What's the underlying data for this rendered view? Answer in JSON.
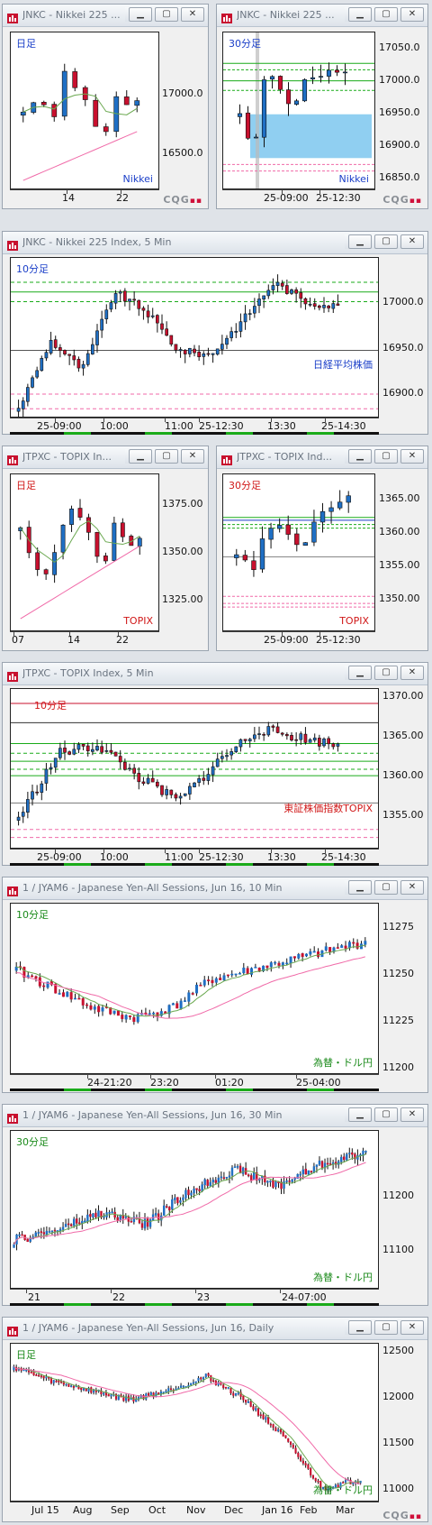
{
  "colors": {
    "up": "#1f6fc4",
    "down": "#c8102e",
    "ma_green": "#6aa84f",
    "ma_pink": "#f06aa8",
    "green_line": "#1aab1a",
    "box": "#7cc7ef",
    "tf_blue": "#1a3ec8",
    "tf_red": "#d01818",
    "tf_green": "#1a8a1a"
  },
  "windows": [
    {
      "id": "w1",
      "title": "JNKC - Nikkei 225 ...",
      "timeframe": "日足",
      "watermark": "Nikkei",
      "y_labels": [
        "17000.0",
        "16500.0"
      ],
      "x_labels": [
        "14",
        "22"
      ],
      "logo": "CQG",
      "ylim": [
        16100,
        17700
      ],
      "tf_color": "tf_blue",
      "wm_color": "tf_blue",
      "kind": "daily"
    },
    {
      "id": "w2",
      "title": "JNKC - Nikkei 225 ...",
      "timeframe": "30分足",
      "watermark": "Nikkei",
      "y_labels": [
        "17050.0",
        "17000.0",
        "16950.0",
        "16900.0",
        "16850.0"
      ],
      "x_labels": [
        "25-09:00",
        "25-12:30"
      ],
      "logo": "CQG",
      "ylim": [
        16830,
        17075
      ],
      "tf_color": "tf_blue",
      "wm_color": "tf_blue",
      "kind": "intraday30"
    },
    {
      "id": "w3",
      "title": "JNKC - Nikkei 225 Index, 5 Min",
      "timeframe": "10分足",
      "watermark": "日経平均株価",
      "y_labels": [
        "17000.0",
        "16950.0",
        "16900.0"
      ],
      "x_labels": [
        "25-09:00",
        "10:00",
        "11:00",
        "25-12:30",
        "13:30",
        "25-14:30"
      ],
      "logo": "",
      "ylim": [
        16880,
        17045
      ],
      "tf_color": "tf_blue",
      "wm_color": "tf_blue",
      "kind": "intraday5"
    },
    {
      "id": "w4",
      "title": "JTPXC - TOPIX In...",
      "timeframe": "日足",
      "watermark": "TOPIX",
      "y_labels": [
        "1375.00",
        "1350.00",
        "1325.00"
      ],
      "x_labels": [
        "07",
        "14",
        "22"
      ],
      "logo": "",
      "ylim": [
        1308,
        1390
      ],
      "tf_color": "tf_red",
      "wm_color": "tf_red",
      "kind": "daily"
    },
    {
      "id": "w5",
      "title": "JTPXC - TOPIX Ind...",
      "timeframe": "30分足",
      "watermark": "TOPIX",
      "y_labels": [
        "1365.00",
        "1360.00",
        "1355.00",
        "1350.00"
      ],
      "x_labels": [
        "25-09:00",
        "25-12:30"
      ],
      "logo": "",
      "ylim": [
        1347,
        1369
      ],
      "tf_color": "tf_red",
      "wm_color": "tf_red",
      "kind": "intraday30"
    },
    {
      "id": "w6",
      "title": "JTPXC - TOPIX Index, 5 Min",
      "timeframe": "10分足",
      "watermark": "東証株価指数TOPIX",
      "y_labels": [
        "1370.00",
        "1365.00",
        "1360.00",
        "1355.00"
      ],
      "x_labels": [
        "25-09:00",
        "10:00",
        "11:00",
        "25-12:30",
        "13:30",
        "25-14:30"
      ],
      "logo": "",
      "ylim": [
        1352,
        1372
      ],
      "tf_color": "tf_red",
      "wm_color": "tf_red",
      "kind": "intraday5"
    },
    {
      "id": "w7",
      "title": "1 / JYAM6 - Japanese Yen-All Sessions, Jun 16, 10 Min",
      "timeframe": "10分足",
      "watermark": "為替・ドル円",
      "y_labels": [
        "11275",
        "11250",
        "11225",
        "11200"
      ],
      "x_labels": [
        "24-21:20",
        "23:20",
        "01:20",
        "25-04:00"
      ],
      "logo": "",
      "ylim": [
        11195,
        11285
      ],
      "tf_color": "tf_green",
      "wm_color": "tf_green",
      "kind": "yen10"
    },
    {
      "id": "w8",
      "title": "1 / JYAM6 - Japanese Yen-All Sessions, Jun 16, 30 Min",
      "timeframe": "30分足",
      "watermark": "為替・ドル円",
      "y_labels": [
        "11200",
        "11100"
      ],
      "x_labels": [
        "21",
        "22",
        "23",
        "24-07:00"
      ],
      "logo": "",
      "ylim": [
        11030,
        11320
      ],
      "tf_color": "tf_green",
      "wm_color": "tf_green",
      "kind": "yen30"
    },
    {
      "id": "w9",
      "title": "1 / JYAM6 - Japanese Yen-All Sessions, Jun 16, Daily",
      "timeframe": "日足",
      "watermark": "為替・ドル円",
      "y_labels": [
        "12500",
        "12000",
        "11500",
        "11000"
      ],
      "x_labels": [
        "Jul 15",
        "Aug",
        "Sep",
        "Oct",
        "Nov",
        "Dec",
        "Jan 16",
        "Feb",
        "Mar"
      ],
      "logo": "CQG",
      "ylim": [
        10850,
        12550
      ],
      "tf_color": "tf_green",
      "wm_color": "tf_green",
      "kind": "yendaily"
    }
  ],
  "chart_data": [
    {
      "type": "candlestick",
      "title": "JNKC 日足",
      "x_ticks": [
        "14",
        "22"
      ],
      "ylim": [
        16100,
        17700
      ],
      "close_approx": [
        16900,
        17000,
        16950,
        16850,
        17300,
        17150,
        17000,
        16750,
        16700,
        17050,
        16950,
        17000
      ]
    },
    {
      "type": "candlestick",
      "title": "JNKC 30分足",
      "x_ticks": [
        "25-09:00",
        "25-12:30"
      ],
      "ylim": [
        16830,
        17075
      ],
      "close_approx": [
        16950,
        16880,
        17020,
        16990,
        16960,
        17000,
        17010,
        17015,
        17010
      ]
    },
    {
      "type": "candlestick",
      "title": "JNKC 10分足",
      "x_ticks": [
        "25-09:00",
        "10:00",
        "11:00",
        "25-12:30",
        "13:30",
        "25-14:30"
      ],
      "ylim": [
        16880,
        17045
      ],
      "close_approx": [
        16890,
        16960,
        16930,
        17010,
        16990,
        16950,
        16945,
        16980,
        17020,
        17000,
        16995
      ]
    },
    {
      "type": "candlestick",
      "title": "JTPXC 日足",
      "x_ticks": [
        "07",
        "14",
        "22"
      ],
      "ylim": [
        1308,
        1390
      ],
      "close_approx": [
        1365,
        1345,
        1338,
        1350,
        1375,
        1365,
        1355,
        1342,
        1365,
        1350,
        1358
      ]
    },
    {
      "type": "candlestick",
      "title": "JTPXC 30分足",
      "x_ticks": [
        "25-09:00",
        "25-12:30"
      ],
      "ylim": [
        1347,
        1369
      ],
      "close_approx": [
        1358,
        1355,
        1362,
        1361,
        1358,
        1364,
        1365,
        1366
      ]
    },
    {
      "type": "candlestick",
      "title": "JTPXC 10分足",
      "x_ticks": [
        "25-09:00",
        "10:00",
        "11:00",
        "25-12:30",
        "13:30",
        "25-14:30"
      ],
      "ylim": [
        1352,
        1372
      ],
      "close_approx": [
        1356,
        1364,
        1365,
        1361,
        1358,
        1363,
        1367,
        1366,
        1365
      ]
    },
    {
      "type": "candlestick",
      "title": "JYAM6 10分足",
      "x_ticks": [
        "24-21:20",
        "23:20",
        "01:20",
        "25-04:00"
      ],
      "ylim": [
        11195,
        11285
      ],
      "close_approx": [
        11250,
        11240,
        11230,
        11225,
        11230,
        11245,
        11250,
        11255,
        11260,
        11265
      ]
    },
    {
      "type": "candlestick",
      "title": "JYAM6 30分足",
      "x_ticks": [
        "21",
        "22",
        "23",
        "24-07:00"
      ],
      "ylim": [
        11030,
        11320
      ],
      "close_approx": [
        11120,
        11140,
        11170,
        11150,
        11210,
        11250,
        11220,
        11260,
        11280
      ]
    },
    {
      "type": "candlestick",
      "title": "JYAM6 Daily",
      "x_ticks": [
        "Jul 15",
        "Aug",
        "Sep",
        "Oct",
        "Nov",
        "Dec",
        "Jan 16",
        "Feb",
        "Mar"
      ],
      "ylim": [
        10850,
        12550
      ],
      "close_approx": [
        12300,
        12150,
        12050,
        11950,
        12050,
        12200,
        11950,
        11550,
        11000,
        11100
      ]
    }
  ]
}
